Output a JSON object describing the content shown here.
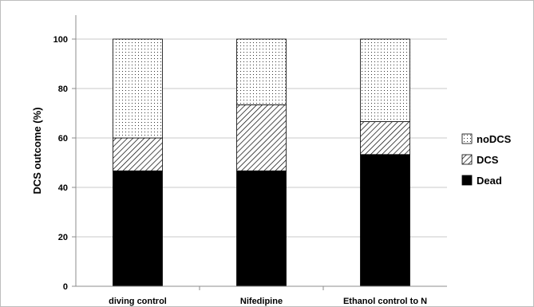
{
  "chart_data": {
    "type": "bar",
    "stacked": true,
    "categories": [
      "diving control",
      "Nifedipine",
      "Ethanol control to N"
    ],
    "series": [
      {
        "name": "Dead",
        "values": [
          46.7,
          46.7,
          53.3
        ],
        "color": "#000000",
        "pattern": "solid"
      },
      {
        "name": "DCS",
        "values": [
          13.3,
          26.7,
          13.3
        ],
        "color": "#ffffff",
        "pattern": "diagonal-hatch"
      },
      {
        "name": "noDCS",
        "values": [
          40.0,
          26.6,
          33.4
        ],
        "color": "#ffffff",
        "pattern": "dots"
      }
    ],
    "title": "",
    "xlabel": "",
    "ylabel": "DCS outcome (%)",
    "ylim": [
      0,
      100
    ],
    "yticks": [
      0,
      20,
      40,
      60,
      80,
      100
    ],
    "grid": true,
    "legend_position": "right",
    "legend_order": [
      "noDCS",
      "DCS",
      "Dead"
    ]
  }
}
